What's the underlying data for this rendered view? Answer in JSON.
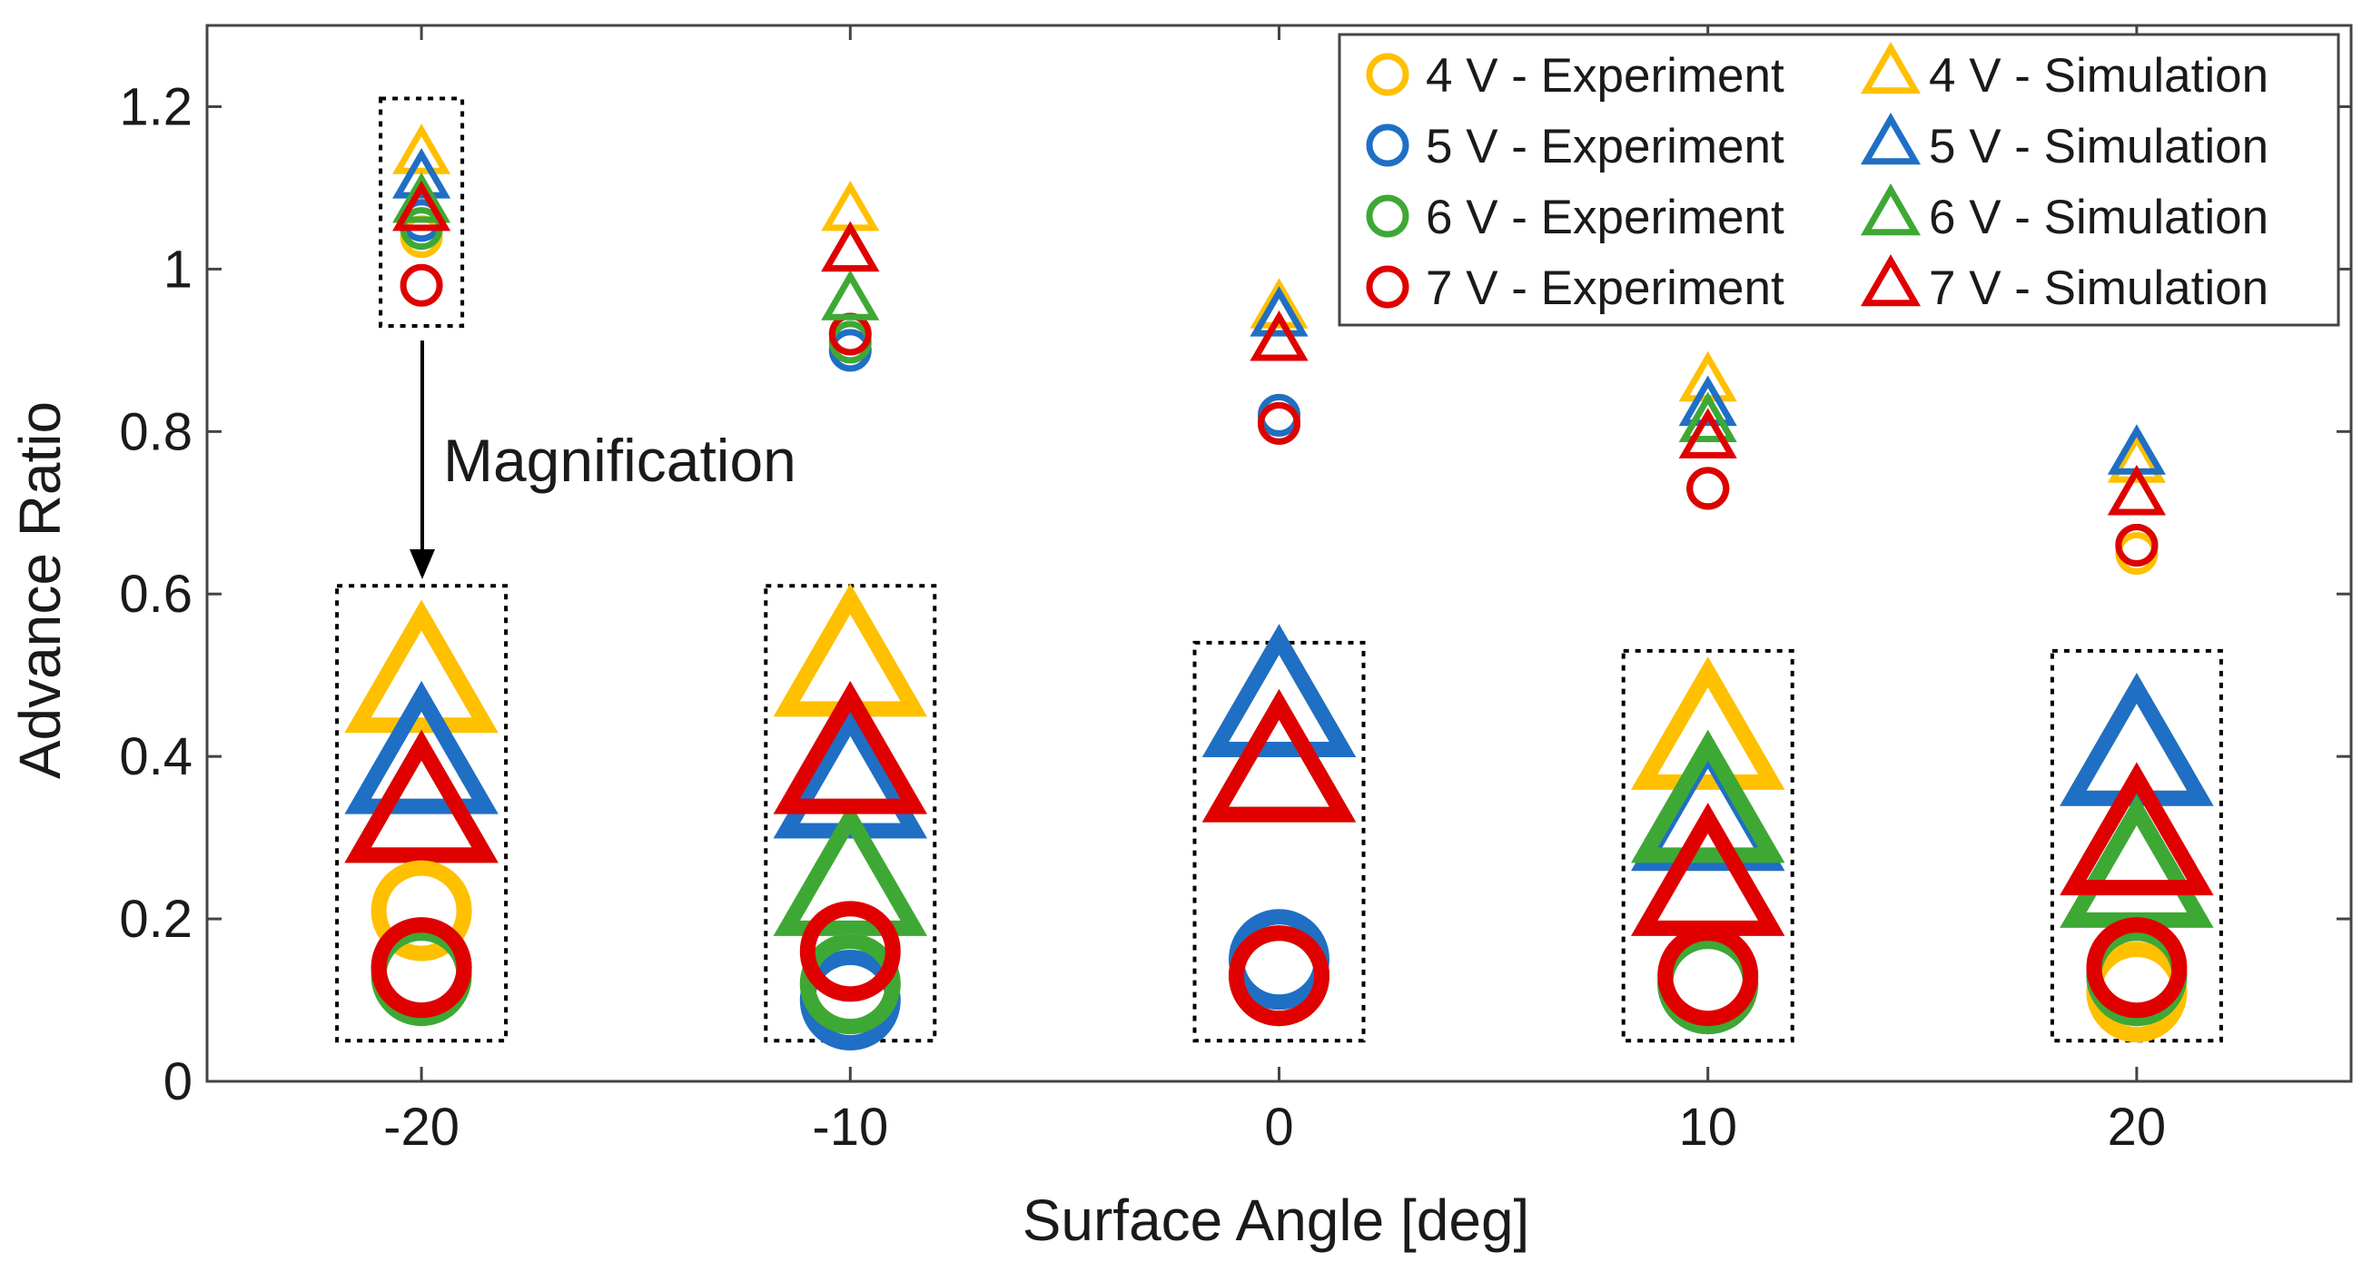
{
  "chart_data": {
    "type": "scatter",
    "xlabel": "Surface Angle [deg]",
    "ylabel": "Advance Ratio",
    "xlim": [
      -25,
      25
    ],
    "ylim": [
      0,
      1.3
    ],
    "x": [
      -20,
      -10,
      0,
      10,
      20
    ],
    "xticks": [
      "-20",
      "-10",
      "0",
      "10",
      "20"
    ],
    "yticks": [
      "0",
      "0.2",
      "0.4",
      "0.6",
      "0.8",
      "1",
      "1.2"
    ],
    "colors": {
      "4 V": "#FFC000",
      "5 V": "#1F6FC5",
      "6 V": "#3EA835",
      "7 V": "#E00000"
    },
    "series": [
      {
        "name": "4 V - Experiment",
        "voltage": "4 V",
        "kind": "experiment",
        "values": [
          1.04,
          0.92,
          0.82,
          0.73,
          0.65
        ]
      },
      {
        "name": "5 V - Experiment",
        "voltage": "5 V",
        "kind": "experiment",
        "values": [
          1.06,
          0.9,
          0.82,
          0.73,
          0.66
        ]
      },
      {
        "name": "6 V - Experiment",
        "voltage": "6 V",
        "kind": "experiment",
        "values": [
          1.05,
          0.91,
          0.81,
          0.73,
          0.66
        ]
      },
      {
        "name": "7 V - Experiment",
        "voltage": "7 V",
        "kind": "experiment",
        "values": [
          0.98,
          0.92,
          0.81,
          0.73,
          0.66
        ]
      },
      {
        "name": "4 V - Simulation",
        "voltage": "4 V",
        "kind": "simulation",
        "values": [
          1.14,
          1.07,
          0.95,
          0.86,
          0.76
        ]
      },
      {
        "name": "5 V - Simulation",
        "voltage": "5 V",
        "kind": "simulation",
        "values": [
          1.11,
          1.02,
          0.94,
          0.83,
          0.77
        ]
      },
      {
        "name": "6 V - Simulation",
        "voltage": "6 V",
        "kind": "simulation",
        "values": [
          1.08,
          0.96,
          0.91,
          0.81,
          0.72
        ]
      },
      {
        "name": "7 V - Simulation",
        "voltage": "7 V",
        "kind": "simulation",
        "values": [
          1.07,
          1.02,
          0.91,
          0.79,
          0.72
        ]
      }
    ],
    "magnified": {
      "experiment": {
        "4 V": [
          0.21,
          0.12,
          0.13,
          0.12,
          0.11
        ],
        "5 V": [
          0.14,
          0.1,
          0.15,
          0.12,
          0.13
        ],
        "6 V": [
          0.13,
          0.12,
          0.13,
          0.12,
          0.13
        ],
        "7 V": [
          0.14,
          0.16,
          0.13,
          0.13,
          0.14
        ]
      },
      "simulation": {
        "4 V": [
          0.49,
          0.51,
          0.46,
          0.42,
          0.4
        ],
        "5 V": [
          0.39,
          0.36,
          0.46,
          0.32,
          0.4
        ],
        "6 V": [
          0.33,
          0.24,
          0.38,
          0.33,
          0.25
        ],
        "7 V": [
          0.33,
          0.39,
          0.38,
          0.24,
          0.29
        ]
      }
    },
    "legend_position": "top-right",
    "annotation": "Magnification",
    "grid": false
  }
}
